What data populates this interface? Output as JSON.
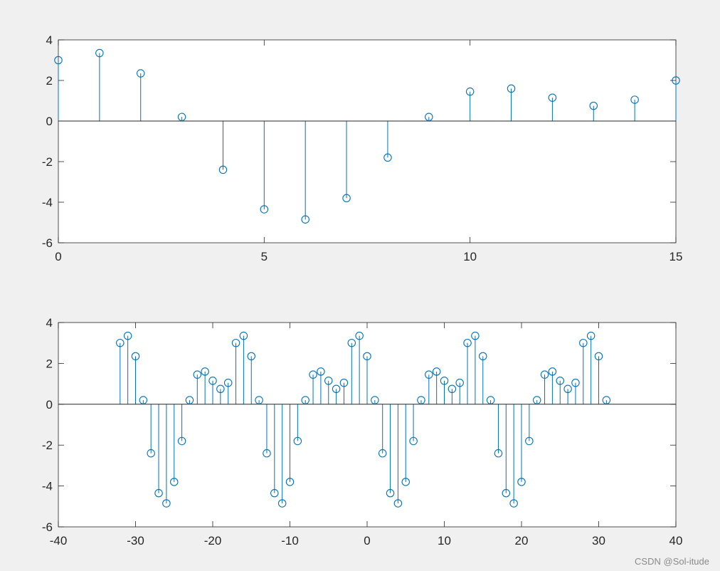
{
  "colors": {
    "figure_bg": "#f0f0f0",
    "axes_bg": "#ffffff",
    "stem": "#0072bd",
    "axis": "#262626"
  },
  "watermark": "CSDN @Sol-itude",
  "chart_data": [
    {
      "type": "stem",
      "marker": "circle",
      "xlim": [
        0,
        15
      ],
      "ylim": [
        -6,
        4
      ],
      "xticks": [
        0,
        5,
        10,
        15
      ],
      "yticks": [
        -6,
        -4,
        -2,
        0,
        2,
        4
      ],
      "x": [
        0,
        1,
        2,
        3,
        4,
        5,
        6,
        7,
        8,
        9,
        10,
        11,
        12,
        13,
        14,
        15
      ],
      "values": [
        3.0,
        3.35,
        2.35,
        0.2,
        -2.4,
        -4.35,
        -4.85,
        -3.8,
        -1.8,
        0.2,
        1.45,
        1.6,
        1.15,
        0.75,
        1.05,
        2.0
      ]
    },
    {
      "type": "stem",
      "marker": "circle",
      "xlim": [
        -40,
        40
      ],
      "ylim": [
        -6,
        4
      ],
      "xticks": [
        -40,
        -30,
        -20,
        -10,
        0,
        10,
        20,
        30,
        40
      ],
      "yticks": [
        -6,
        -4,
        -2,
        0,
        2,
        4
      ],
      "x": [
        -32,
        -31,
        -30,
        -29,
        -28,
        -27,
        -26,
        -25,
        -24,
        -23,
        -22,
        -21,
        -20,
        -19,
        -18,
        -17,
        -16,
        -15,
        -14,
        -13,
        -12,
        -11,
        -10,
        -9,
        -8,
        -7,
        -6,
        -5,
        -4,
        -3,
        -2,
        -1,
        0,
        1,
        2,
        3,
        4,
        5,
        6,
        7,
        8,
        9,
        10,
        11,
        12,
        13,
        14,
        15,
        16,
        17,
        18,
        19,
        20,
        21,
        22,
        23,
        24,
        25,
        26,
        27,
        28,
        29,
        30,
        31
      ],
      "values": [
        3.0,
        3.35,
        2.35,
        0.2,
        -2.4,
        -4.35,
        -4.85,
        -3.8,
        -1.8,
        0.2,
        1.45,
        1.6,
        1.15,
        0.75,
        1.05,
        3.0,
        3.35,
        2.35,
        0.2,
        -2.4,
        -4.35,
        -4.85,
        -3.8,
        -1.8,
        0.2,
        1.45,
        1.6,
        1.15,
        0.75,
        1.05,
        3.0,
        3.35,
        2.35,
        0.2,
        -2.4,
        -4.35,
        -4.85,
        -3.8,
        -1.8,
        0.2,
        1.45,
        1.6,
        1.15,
        0.75,
        1.05,
        3.0,
        3.35,
        2.35,
        0.2,
        -2.4,
        -4.35,
        -4.85,
        -3.8,
        -1.8,
        0.2,
        1.45,
        1.6,
        1.15,
        0.75,
        1.05,
        3.0,
        3.35,
        2.35,
        0.2
      ]
    }
  ]
}
